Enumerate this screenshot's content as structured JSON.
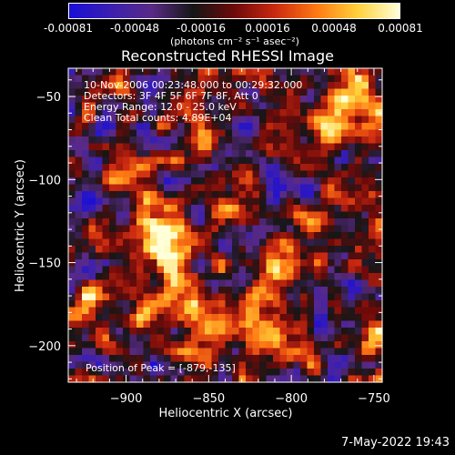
{
  "colorbar": {
    "ticks": [
      "-0.00081",
      "-0.00048",
      "-0.00016",
      "0.00016",
      "0.00048",
      "0.00081"
    ],
    "units": "(photons cm⁻² s⁻¹ asec⁻²)",
    "range": [
      -0.00081,
      0.00081
    ],
    "colormap": [
      "#1a0fd6",
      "#3b1fb0",
      "#5a2a86",
      "#161616",
      "#6e0a0a",
      "#cc2a10",
      "#ff7a14",
      "#ffd23c",
      "#ffffd8"
    ]
  },
  "annotations": {
    "time": "10-Nov-2006 00:23:48.000 to 00:29:32.000",
    "detectors": "Detectors: 3F 4F 5F 6F 7F 8F, Att 0",
    "energy": "Energy Range: 12.0 - 25.0 keV",
    "method": "Clean    Total counts: 4.89E+04",
    "peak": "Position of Peak = [-879,-135]"
  },
  "footer": {
    "date": "7-May-2022 19:43"
  },
  "chart_data": {
    "type": "heatmap",
    "title": "Reconstructed RHESSI Image",
    "xlabel": "Heliocentric X (arcsec)",
    "ylabel": "Heliocentric Y (arcsec)",
    "xlim": [
      -935,
      -745
    ],
    "ylim": [
      -222,
      -33
    ],
    "xticks": [
      -900,
      -850,
      -800,
      -750
    ],
    "yticks": [
      -50,
      -100,
      -150,
      -200
    ],
    "peak": {
      "x": -879,
      "y": -135
    },
    "value_range": [
      -0.00081,
      0.00081
    ],
    "colors": {
      "high": "#ffffd8",
      "low": "#1a0fd6",
      "zero": "#161616"
    }
  }
}
